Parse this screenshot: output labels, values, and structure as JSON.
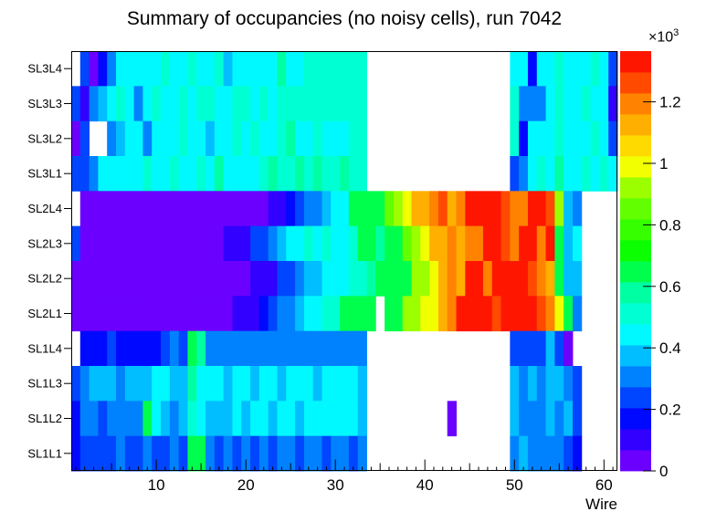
{
  "title": "Summary of occupancies (no noisy cells), run 7042",
  "axes": {
    "x_label": "Wire",
    "x_ticks": [
      10,
      20,
      30,
      40,
      50,
      60
    ],
    "x_range": [
      0.5,
      61.5
    ],
    "scale_base": "×10",
    "scale_exponent": "3"
  },
  "colorbar": {
    "tick_labels": [
      "0",
      "0.2",
      "0.4",
      "0.6",
      "0.8",
      "1",
      "1.2"
    ],
    "tick_values": [
      0,
      0.2,
      0.4,
      0.6,
      0.8,
      1.0,
      1.2
    ],
    "z_max": 1.365,
    "levels": 20
  },
  "palette": {
    "description": "ROOT rainbow: violet to red",
    "hue_stops": [
      [
        0,
        272
      ],
      [
        0.2,
        232
      ],
      [
        0.4,
        190
      ],
      [
        0.45,
        180
      ],
      [
        0.6,
        155
      ],
      [
        0.7,
        120
      ],
      [
        0.9,
        90
      ],
      [
        1.0,
        60
      ],
      [
        1.1,
        45
      ],
      [
        1.2,
        30
      ],
      [
        1.3,
        10
      ],
      [
        1.365,
        0
      ]
    ],
    "frame_color": "#000000",
    "background": "#ffffff"
  },
  "chart_data": {
    "type": "heatmap",
    "title": "Summary of occupancies (no noisy cells), run 7042",
    "xlabel": "Wire",
    "zlabel_scale": "×10^3",
    "x_range": [
      0.5,
      61.5
    ],
    "wires": 61,
    "legend_position": "right-colorbar",
    "grid": false,
    "rows": [
      "SL3L4",
      "SL3L3",
      "SL3L2",
      "SL3L1",
      "SL2L4",
      "SL2L3",
      "SL2L2",
      "SL2L1",
      "SL1L4",
      "SL1L3",
      "SL1L2",
      "SL1L1"
    ],
    "values_unit": "counts ×10³ (null = empty bin)",
    "values_by_row": {
      "SL3L4": [
        null,
        0.25,
        0.05,
        0.18,
        0.32,
        0.45,
        0.45,
        0.42,
        0.45,
        0.45,
        0.48,
        0.45,
        0.45,
        0.5,
        0.45,
        0.45,
        0.48,
        0.38,
        0.45,
        0.45,
        0.42,
        0.45,
        0.45,
        0.55,
        0.45,
        0.45,
        0.48,
        0.5,
        0.5,
        0.5,
        0.5,
        0.5,
        0.5,
        null,
        null,
        null,
        null,
        null,
        null,
        null,
        null,
        null,
        null,
        null,
        null,
        null,
        null,
        null,
        null,
        0.45,
        0.45,
        0.2,
        0.45,
        0.42,
        0.5,
        0.45,
        0.45,
        0.45,
        0.48,
        0.45,
        0.25
      ],
      "SL3L3": [
        0.25,
        0.12,
        0.28,
        0.35,
        0.45,
        0.48,
        0.45,
        0.32,
        0.45,
        0.48,
        0.45,
        0.45,
        0.5,
        0.45,
        0.48,
        0.5,
        0.45,
        0.45,
        0.5,
        0.48,
        0.45,
        0.5,
        0.45,
        0.5,
        0.5,
        0.5,
        0.48,
        0.5,
        0.5,
        0.5,
        0.52,
        0.5,
        0.5,
        null,
        null,
        null,
        null,
        null,
        null,
        null,
        null,
        null,
        null,
        null,
        null,
        null,
        null,
        null,
        null,
        0.48,
        0.3,
        0.3,
        0.3,
        0.45,
        0.5,
        0.42,
        0.45,
        0.48,
        0.45,
        0.45,
        0.12
      ],
      "SL3L2": [
        0.05,
        0.25,
        null,
        null,
        0.28,
        0.35,
        0.45,
        0.45,
        0.3,
        0.45,
        0.42,
        0.45,
        0.48,
        0.45,
        0.45,
        0.38,
        0.45,
        0.45,
        0.5,
        0.45,
        0.48,
        0.45,
        0.45,
        0.5,
        0.55,
        0.45,
        0.45,
        0.48,
        0.45,
        0.45,
        0.45,
        0.5,
        0.48,
        null,
        null,
        null,
        null,
        null,
        null,
        null,
        null,
        null,
        null,
        null,
        null,
        null,
        null,
        null,
        null,
        0.5,
        0.18,
        0.45,
        0.42,
        0.45,
        0.5,
        0.45,
        0.45,
        0.45,
        0.48,
        0.42,
        0.25
      ],
      "SL3L1": [
        0.22,
        0.25,
        0.32,
        0.45,
        0.45,
        0.45,
        0.45,
        0.45,
        0.48,
        0.45,
        0.45,
        0.5,
        0.45,
        0.45,
        0.48,
        0.45,
        0.55,
        0.45,
        0.45,
        0.45,
        0.45,
        0.5,
        0.55,
        0.5,
        0.5,
        0.55,
        0.5,
        0.55,
        0.5,
        0.5,
        0.55,
        0.5,
        0.5,
        null,
        null,
        null,
        null,
        null,
        null,
        null,
        null,
        null,
        null,
        null,
        null,
        null,
        null,
        null,
        null,
        0.25,
        0.3,
        0.45,
        0.5,
        0.45,
        0.55,
        0.45,
        0.45,
        0.48,
        0.45,
        0.5,
        0.45
      ],
      "SL2L4": [
        null,
        0.06,
        0.06,
        0.06,
        0.06,
        0.06,
        0.06,
        0.06,
        0.06,
        0.06,
        0.06,
        0.06,
        0.06,
        0.06,
        0.06,
        0.06,
        0.06,
        0.06,
        0.06,
        0.06,
        0.06,
        0.06,
        0.12,
        0.12,
        0.2,
        0.22,
        0.28,
        0.32,
        0.4,
        0.45,
        0.45,
        0.62,
        0.65,
        0.62,
        0.65,
        0.88,
        0.95,
        1.0,
        1.12,
        1.15,
        1.18,
        1.28,
        1.15,
        1.18,
        1.32,
        1.35,
        1.35,
        1.32,
        1.28,
        1.2,
        1.18,
        1.32,
        1.35,
        1.25,
        0.9,
        0.35,
        0.3,
        null,
        null,
        null,
        null
      ],
      "SL2L3": [
        0.22,
        0.06,
        0.06,
        0.06,
        0.06,
        0.06,
        0.06,
        0.06,
        0.06,
        0.06,
        0.06,
        0.06,
        0.06,
        0.06,
        0.06,
        0.06,
        0.06,
        0.08,
        0.12,
        0.12,
        0.22,
        0.25,
        0.3,
        0.35,
        0.45,
        0.45,
        0.48,
        0.45,
        0.5,
        0.45,
        0.45,
        0.5,
        0.62,
        0.65,
        0.6,
        0.65,
        0.62,
        0.88,
        0.92,
        1.0,
        1.15,
        1.15,
        1.18,
        1.15,
        1.2,
        1.18,
        1.35,
        1.32,
        1.25,
        1.2,
        1.35,
        1.32,
        1.18,
        1.35,
        0.65,
        0.35,
        0.45,
        null,
        null,
        null,
        null
      ],
      "SL2L2": [
        0.06,
        0.06,
        0.06,
        0.06,
        0.06,
        0.06,
        0.06,
        0.06,
        0.06,
        0.06,
        0.06,
        0.06,
        0.06,
        0.06,
        0.06,
        0.06,
        0.06,
        0.06,
        0.06,
        0.06,
        0.12,
        0.12,
        0.12,
        0.22,
        0.22,
        0.3,
        0.35,
        0.4,
        0.45,
        0.45,
        0.45,
        0.48,
        0.5,
        0.6,
        0.62,
        0.65,
        0.62,
        0.68,
        0.9,
        0.92,
        1.0,
        1.15,
        1.18,
        1.15,
        1.32,
        1.35,
        1.18,
        1.35,
        1.32,
        1.35,
        1.35,
        1.28,
        1.18,
        1.15,
        0.65,
        0.4,
        0.35,
        null,
        null,
        null,
        null
      ],
      "SL2L1": [
        0.06,
        0.06,
        0.06,
        0.06,
        0.06,
        0.06,
        0.06,
        0.06,
        0.06,
        0.06,
        0.06,
        0.06,
        0.06,
        0.06,
        0.06,
        0.06,
        0.06,
        0.06,
        0.1,
        0.12,
        0.12,
        0.2,
        0.22,
        0.3,
        0.32,
        0.35,
        0.45,
        0.45,
        0.48,
        0.5,
        0.62,
        0.65,
        0.62,
        0.65,
        null,
        0.68,
        0.65,
        0.9,
        0.92,
        1.0,
        1.0,
        1.15,
        1.18,
        1.35,
        1.32,
        1.35,
        1.35,
        1.28,
        1.35,
        1.35,
        1.32,
        1.35,
        1.28,
        1.18,
        1.0,
        0.65,
        0.3,
        null,
        null,
        null,
        null
      ],
      "SL1L4": [
        null,
        0.2,
        0.2,
        0.2,
        0.25,
        0.2,
        0.2,
        0.18,
        0.2,
        0.2,
        0.22,
        0.3,
        0.25,
        0.65,
        0.6,
        0.32,
        0.3,
        0.3,
        0.3,
        0.3,
        0.3,
        0.3,
        0.3,
        0.3,
        0.3,
        0.3,
        0.3,
        0.3,
        0.3,
        0.3,
        0.3,
        0.3,
        0.3,
        null,
        null,
        null,
        null,
        null,
        null,
        null,
        null,
        null,
        null,
        null,
        null,
        null,
        null,
        null,
        null,
        0.22,
        0.22,
        0.22,
        0.22,
        0.35,
        0.22,
        0.05,
        null,
        null,
        null,
        null,
        null
      ],
      "SL1L3": [
        0.22,
        0.3,
        0.35,
        0.35,
        0.35,
        0.32,
        0.35,
        0.35,
        0.35,
        0.45,
        0.42,
        0.35,
        0.35,
        0.6,
        0.45,
        0.42,
        0.45,
        0.35,
        0.45,
        0.45,
        0.35,
        0.45,
        0.45,
        0.35,
        0.42,
        0.45,
        0.45,
        0.35,
        0.45,
        0.45,
        0.45,
        0.42,
        0.35,
        null,
        null,
        null,
        null,
        null,
        null,
        null,
        null,
        null,
        null,
        null,
        null,
        null,
        null,
        null,
        null,
        0.35,
        0.3,
        0.35,
        0.3,
        0.35,
        0.35,
        0.3,
        0.22,
        null,
        null,
        null,
        null
      ],
      "SL1L2": [
        0.2,
        0.3,
        0.3,
        0.25,
        0.3,
        0.3,
        0.32,
        0.3,
        0.65,
        0.42,
        0.35,
        0.3,
        0.35,
        0.5,
        0.45,
        0.35,
        0.35,
        0.35,
        0.42,
        0.35,
        0.45,
        0.42,
        0.35,
        0.45,
        0.45,
        0.35,
        0.42,
        0.45,
        0.45,
        0.42,
        0.45,
        0.45,
        0.35,
        null,
        null,
        null,
        null,
        null,
        null,
        null,
        null,
        null,
        0.05,
        null,
        null,
        null,
        null,
        null,
        null,
        0.35,
        0.3,
        0.3,
        0.3,
        0.35,
        0.3,
        0.35,
        0.25,
        null,
        null,
        null,
        null
      ],
      "SL1L1": [
        0.18,
        0.25,
        0.25,
        0.25,
        0.25,
        0.28,
        0.22,
        0.25,
        0.3,
        0.25,
        0.25,
        0.3,
        0.25,
        0.68,
        0.65,
        0.3,
        0.25,
        0.3,
        0.25,
        0.32,
        0.25,
        0.3,
        0.25,
        0.3,
        0.3,
        0.25,
        0.3,
        0.3,
        0.25,
        0.3,
        0.3,
        0.25,
        0.3,
        null,
        null,
        null,
        null,
        null,
        null,
        null,
        null,
        null,
        null,
        null,
        null,
        null,
        null,
        null,
        null,
        0.3,
        0.35,
        0.3,
        0.3,
        0.3,
        0.3,
        0.22,
        0.2,
        null,
        null,
        null,
        null
      ]
    }
  }
}
